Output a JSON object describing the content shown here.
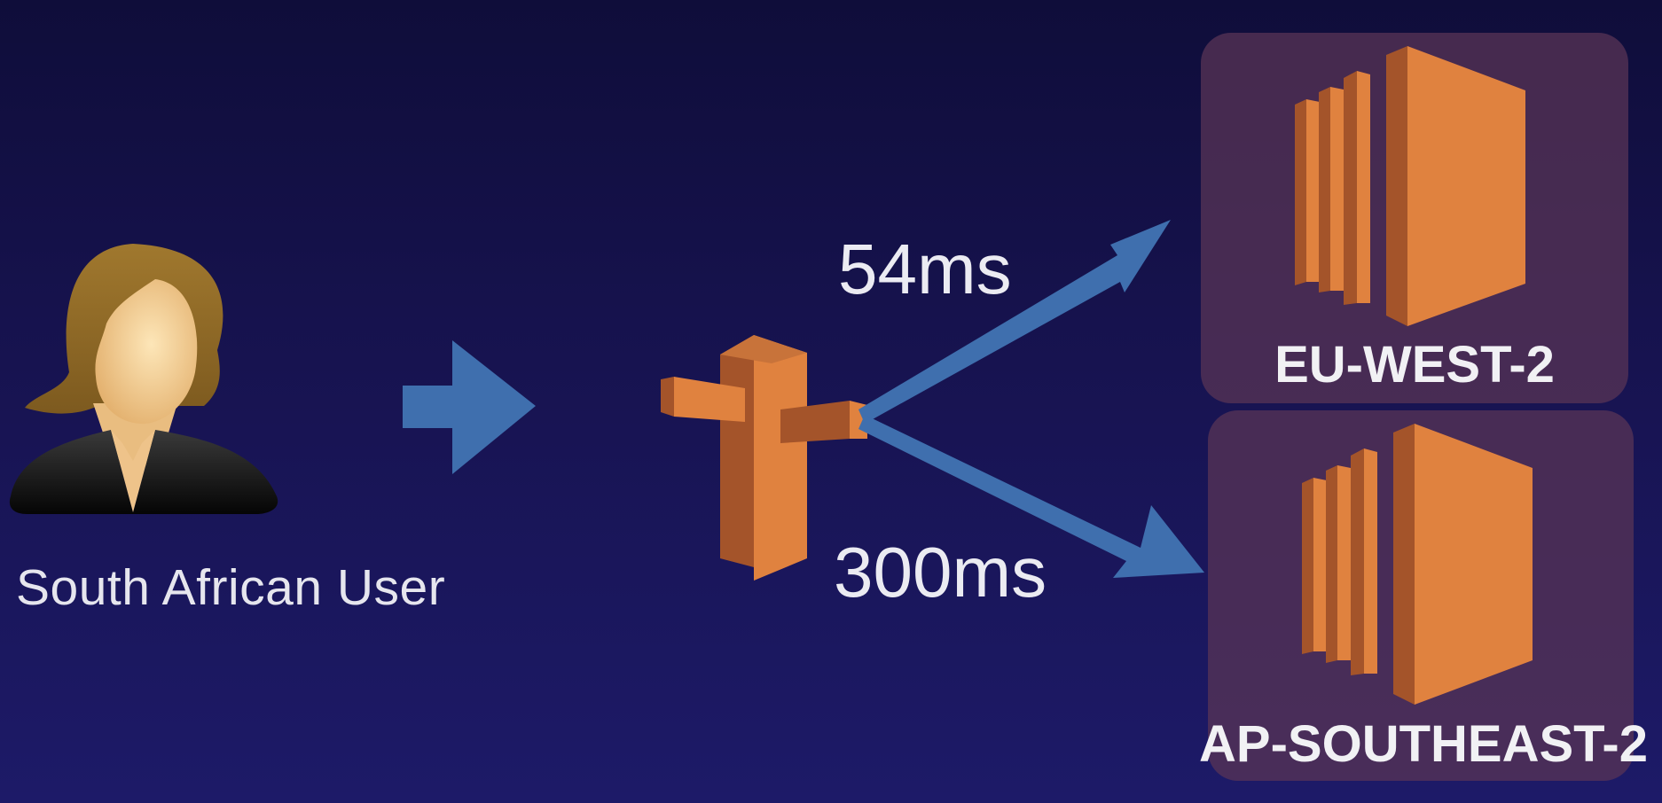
{
  "user": {
    "label": "South African User"
  },
  "latency": {
    "eu": "54ms",
    "ap": "300ms"
  },
  "regions": [
    {
      "label": "EU-WEST-2"
    },
    {
      "label": "AP-SOUTHEAST-2"
    }
  ],
  "colors": {
    "background": "#171350",
    "arrow": "#3f6fae",
    "aws_orange": "#e0823f",
    "aws_orange_dark": "#a4542a",
    "region_box": "#583456"
  },
  "icons": [
    "user-avatar-icon",
    "route53-signpost-icon",
    "ec2-instance-icon"
  ]
}
